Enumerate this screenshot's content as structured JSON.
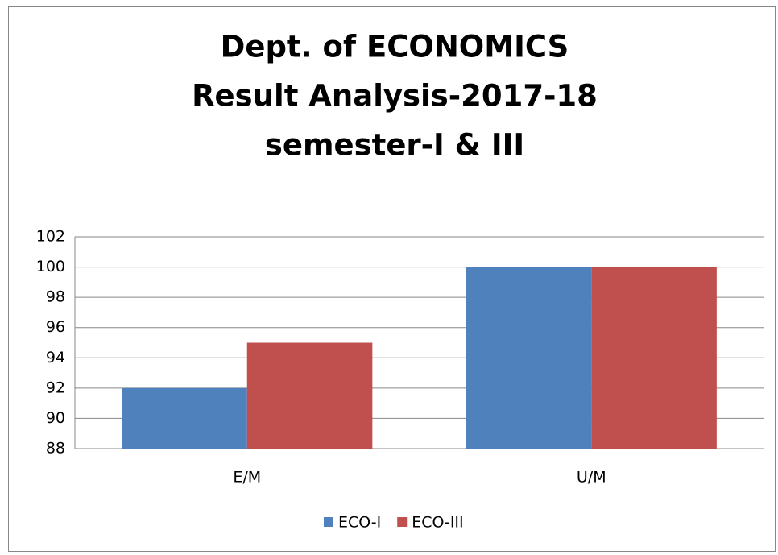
{
  "chart_data": {
    "type": "bar",
    "title": [
      "Dept. of ECONOMICS",
      "Result Analysis-2017-18",
      "semester-I & III"
    ],
    "categories": [
      "E/M",
      "U/M"
    ],
    "series": [
      {
        "name": "ECO-I",
        "color": "#4f81bd",
        "values": [
          92,
          100
        ]
      },
      {
        "name": "ECO-III",
        "color": "#c0504d",
        "values": [
          95,
          100
        ]
      }
    ],
    "ylim": [
      88,
      102
    ],
    "yticks": [
      88,
      90,
      92,
      94,
      96,
      98,
      100,
      102
    ],
    "grid": true,
    "legend": "bottom"
  }
}
